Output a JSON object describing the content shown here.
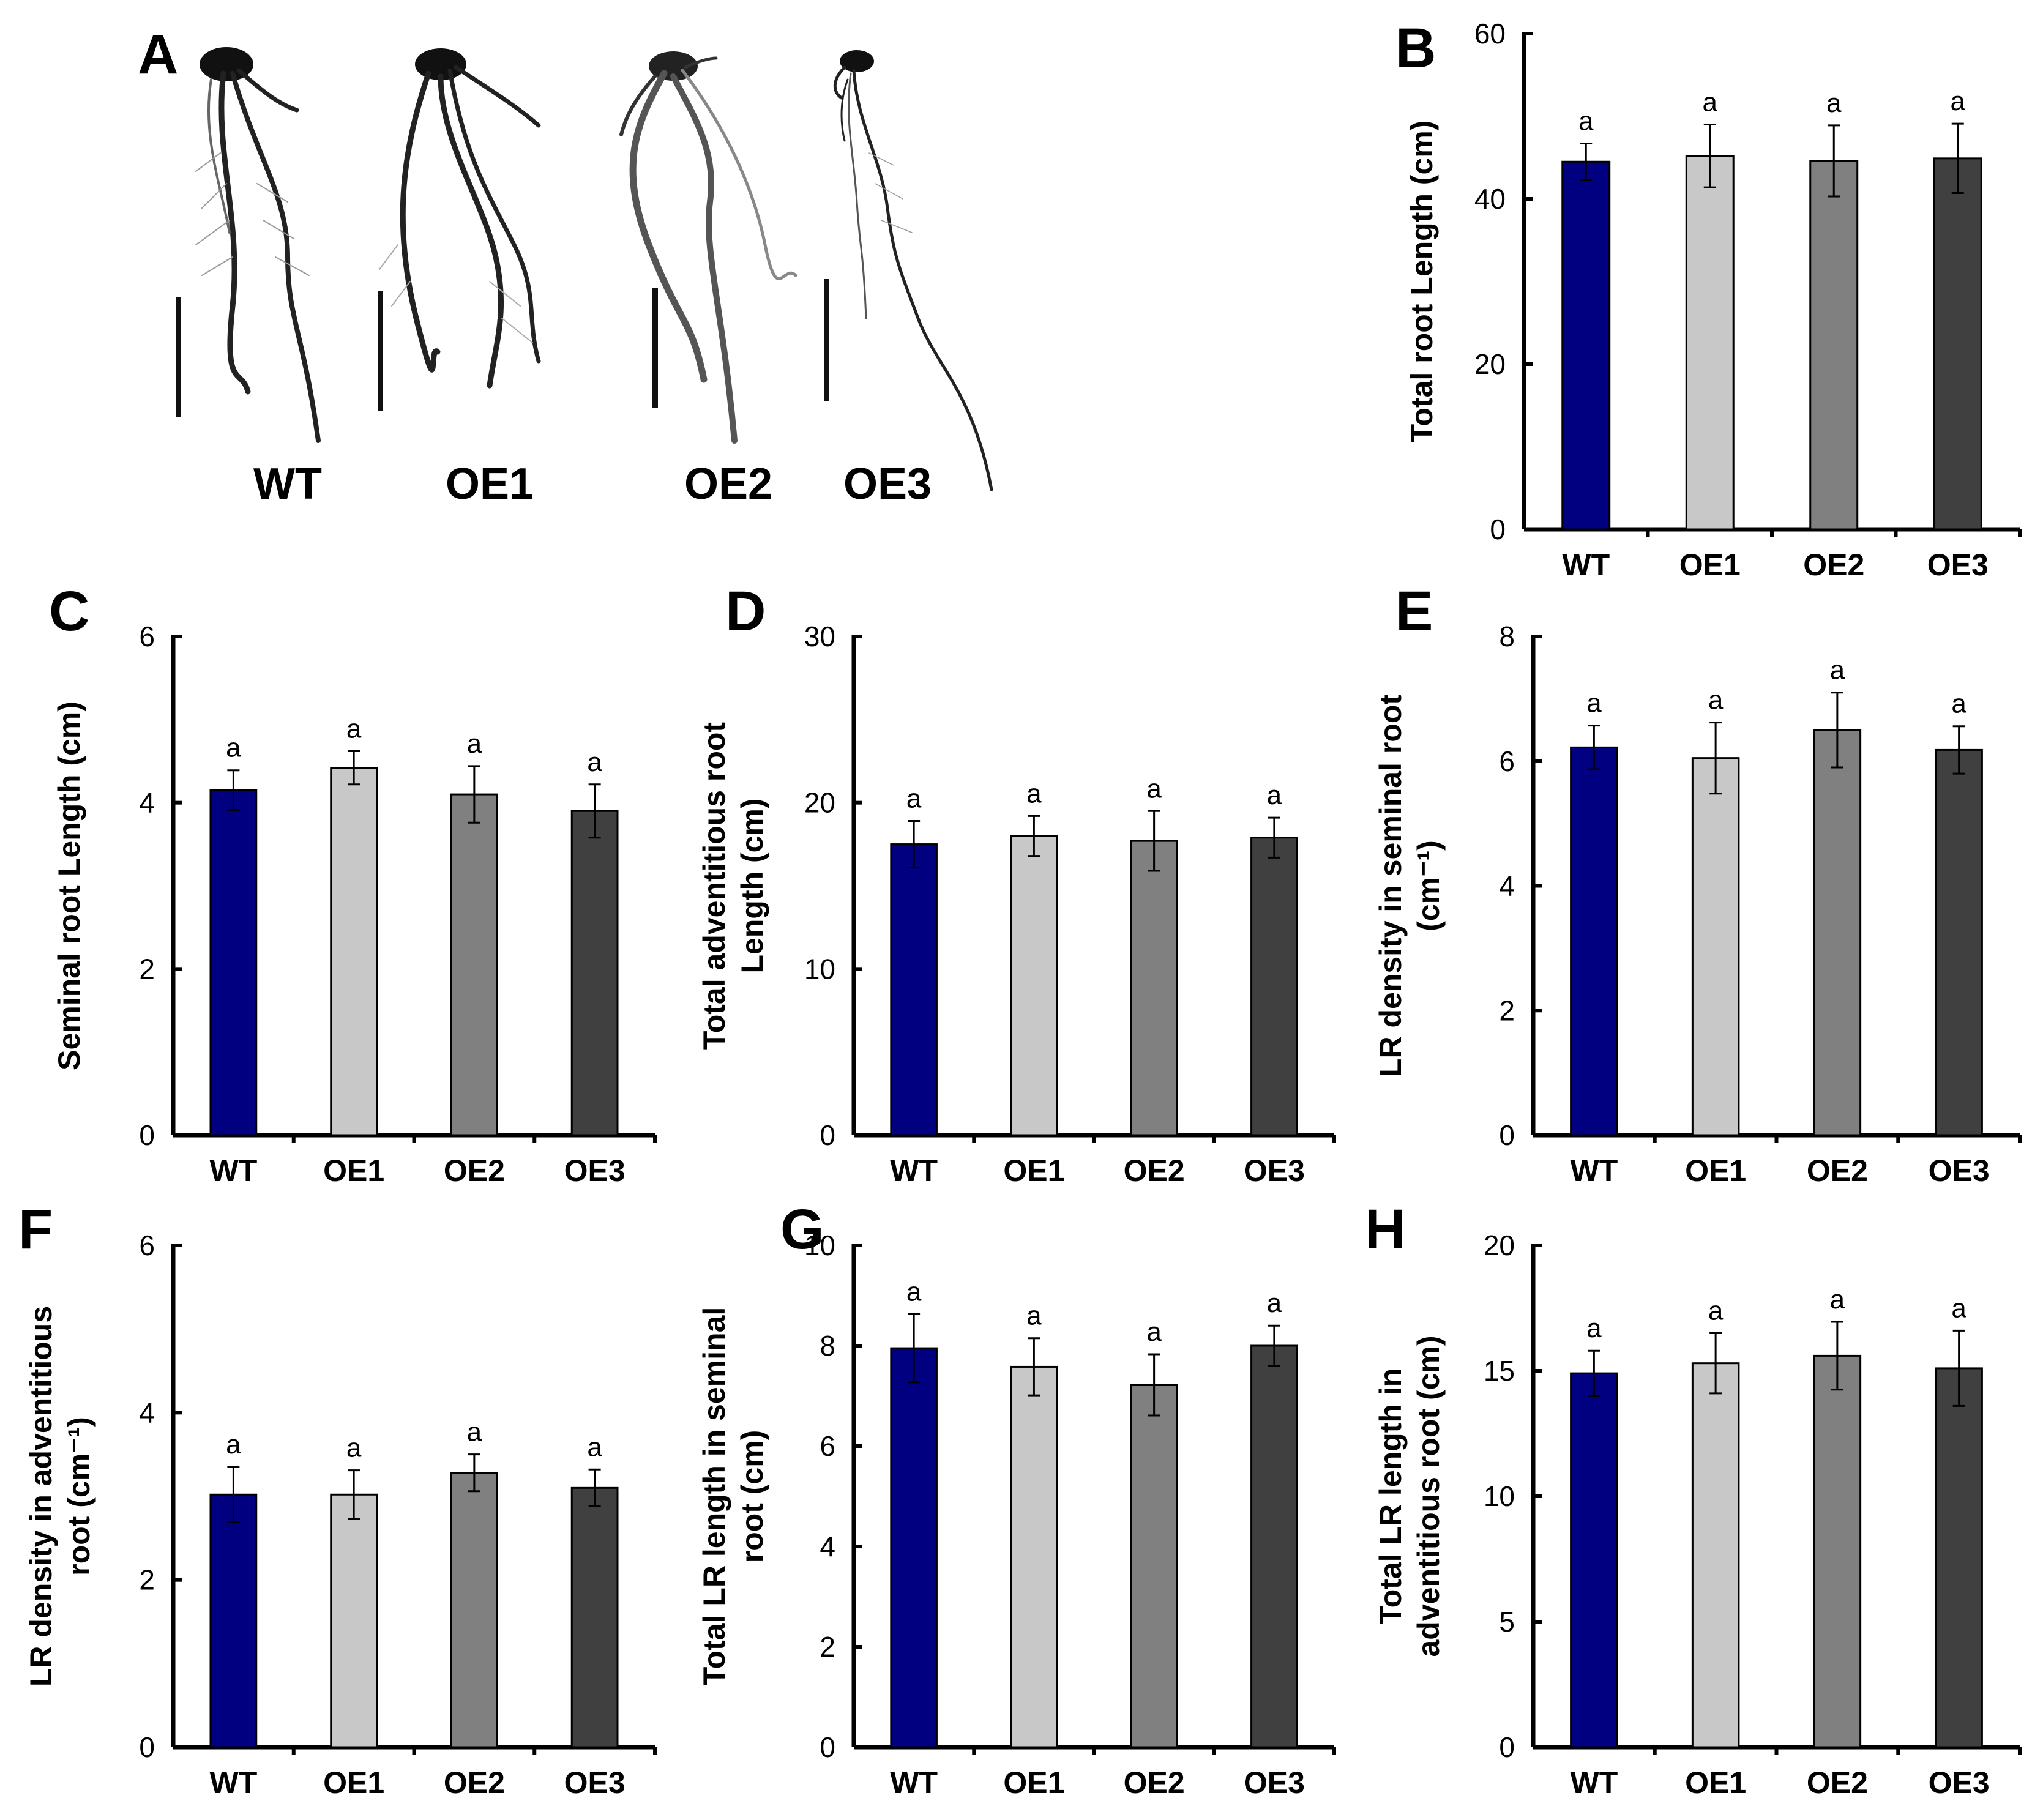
{
  "figure": {
    "panel_a": {
      "letter": "A",
      "labels": [
        "WT",
        "OE1",
        "OE2",
        "OE3"
      ]
    }
  },
  "chart_data": [
    {
      "panel": "B",
      "type": "bar",
      "categories": [
        "WT",
        "OE1",
        "OE2",
        "OE3"
      ],
      "values": [
        44.5,
        45.2,
        44.6,
        44.9
      ],
      "errors": [
        2.2,
        3.8,
        4.3,
        4.2
      ],
      "significance": [
        "a",
        "a",
        "a",
        "a"
      ],
      "ylabel_lines": [
        "Total root Length (cm)"
      ],
      "ylim": [
        0,
        60
      ],
      "yticks": [
        "0",
        "20",
        "40",
        "60"
      ],
      "colors": [
        "#000080",
        "#c8c8c8",
        "#808080",
        "#404040"
      ]
    },
    {
      "panel": "C",
      "type": "bar",
      "categories": [
        "WT",
        "OE1",
        "OE2",
        "OE3"
      ],
      "values": [
        4.15,
        4.42,
        4.1,
        3.9
      ],
      "errors": [
        0.24,
        0.2,
        0.34,
        0.32
      ],
      "significance": [
        "a",
        "a",
        "a",
        "a"
      ],
      "ylabel_lines": [
        "Seminal root Length (cm)"
      ],
      "ylim": [
        0,
        6
      ],
      "yticks": [
        "0",
        "2",
        "4",
        "6"
      ],
      "colors": [
        "#000080",
        "#c8c8c8",
        "#808080",
        "#404040"
      ]
    },
    {
      "panel": "D",
      "type": "bar",
      "categories": [
        "WT",
        "OE1",
        "OE2",
        "OE3"
      ],
      "values": [
        17.5,
        18.0,
        17.7,
        17.9
      ],
      "errors": [
        1.4,
        1.2,
        1.8,
        1.2
      ],
      "significance": [
        "a",
        "a",
        "a",
        "a"
      ],
      "ylabel_lines": [
        "Total adventitious  root",
        "Length (cm)"
      ],
      "ylim": [
        0,
        30
      ],
      "yticks": [
        "0",
        "10",
        "20",
        "30"
      ],
      "colors": [
        "#000080",
        "#c8c8c8",
        "#808080",
        "#404040"
      ]
    },
    {
      "panel": "E",
      "type": "bar",
      "categories": [
        "WT",
        "OE1",
        "OE2",
        "OE3"
      ],
      "values": [
        6.22,
        6.05,
        6.5,
        6.18
      ],
      "errors": [
        0.35,
        0.57,
        0.6,
        0.38
      ],
      "significance": [
        "a",
        "a",
        "a",
        "a"
      ],
      "ylabel_lines": [
        "LR density in seminal root",
        "(cm⁻¹)"
      ],
      "ylim": [
        0,
        8
      ],
      "yticks": [
        "0",
        "2",
        "4",
        "6",
        "8"
      ],
      "colors": [
        "#000080",
        "#c8c8c8",
        "#808080",
        "#404040"
      ]
    },
    {
      "panel": "F",
      "type": "bar",
      "categories": [
        "WT",
        "OE1",
        "OE2",
        "OE3"
      ],
      "values": [
        3.02,
        3.02,
        3.28,
        3.1
      ],
      "errors": [
        0.33,
        0.29,
        0.22,
        0.22
      ],
      "significance": [
        "a",
        "a",
        "a",
        "a"
      ],
      "ylabel_lines": [
        "LR density in adventitious",
        "root (cm⁻¹)"
      ],
      "ylim": [
        0,
        6
      ],
      "yticks": [
        "0",
        "2",
        "4",
        "6"
      ],
      "colors": [
        "#000080",
        "#c8c8c8",
        "#808080",
        "#404040"
      ]
    },
    {
      "panel": "G",
      "type": "bar",
      "categories": [
        "WT",
        "OE1",
        "OE2",
        "OE3"
      ],
      "values": [
        7.95,
        7.58,
        7.22,
        8.0
      ],
      "errors": [
        0.68,
        0.57,
        0.61,
        0.4
      ],
      "significance": [
        "a",
        "a",
        "a",
        "a"
      ],
      "ylabel_lines": [
        "Total LR length in seminal",
        "root (cm)"
      ],
      "ylim": [
        0,
        10
      ],
      "yticks": [
        "0",
        "2",
        "4",
        "6",
        "8",
        "10"
      ],
      "colors": [
        "#000080",
        "#c8c8c8",
        "#808080",
        "#404040"
      ]
    },
    {
      "panel": "H",
      "type": "bar",
      "categories": [
        "WT",
        "OE1",
        "OE2",
        "OE3"
      ],
      "values": [
        14.9,
        15.3,
        15.6,
        15.1
      ],
      "errors": [
        0.9,
        1.2,
        1.35,
        1.5
      ],
      "significance": [
        "a",
        "a",
        "a",
        "a"
      ],
      "ylabel_lines": [
        "Total LR length in",
        "adventitious  root (cm)"
      ],
      "ylim": [
        0,
        20
      ],
      "yticks": [
        "0",
        "5",
        "10",
        "15",
        "20"
      ],
      "colors": [
        "#000080",
        "#c8c8c8",
        "#808080",
        "#404040"
      ]
    }
  ]
}
